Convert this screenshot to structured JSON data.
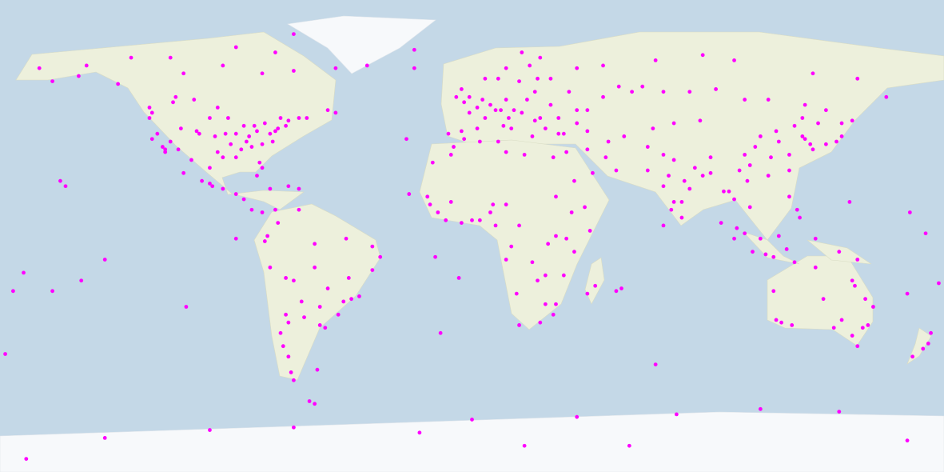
{
  "map": {
    "projection": "equirectangular",
    "lon_range": [
      -180,
      180
    ],
    "lat_range": [
      90,
      -90
    ],
    "point_color": "#ff00ff",
    "points": [
      [
        -122,
        37
      ],
      [
        -118,
        34
      ],
      [
        -117,
        33
      ],
      [
        -112,
        33
      ],
      [
        -105,
        40
      ],
      [
        -97,
        32
      ],
      [
        -95,
        30
      ],
      [
        -90,
        30
      ],
      [
        -84,
        34
      ],
      [
        -81,
        28
      ],
      [
        -80,
        26
      ],
      [
        -77,
        39
      ],
      [
        -74,
        41
      ],
      [
        -71,
        42
      ],
      [
        -75,
        40
      ],
      [
        -87,
        42
      ],
      [
        -83,
        42
      ],
      [
        -93,
        45
      ],
      [
        -90,
        39
      ],
      [
        -94,
        39
      ],
      [
        -86,
        36
      ],
      [
        -80,
        35
      ],
      [
        -82,
        40
      ],
      [
        -79,
        43
      ],
      [
        -73,
        45
      ],
      [
        -97,
        49
      ],
      [
        -104,
        39
      ],
      [
        -111,
        41
      ],
      [
        -115,
        36
      ],
      [
        -120,
        39
      ],
      [
        -123,
        45
      ],
      [
        -122,
        47
      ],
      [
        -114,
        51
      ],
      [
        -113,
        53
      ],
      [
        -106,
        52
      ],
      [
        -100,
        45
      ],
      [
        -98,
        38
      ],
      [
        -92,
        35
      ],
      [
        -88,
        33
      ],
      [
        -85,
        38
      ],
      [
        -76,
        36
      ],
      [
        -70,
        44
      ],
      [
        -66,
        45
      ],
      [
        -63,
        45
      ],
      [
        -123,
        49
      ],
      [
        -135,
        58
      ],
      [
        -150,
        61
      ],
      [
        -147,
        65
      ],
      [
        -165,
        64
      ],
      [
        -160,
        59
      ],
      [
        -100,
        20
      ],
      [
        -99,
        19
      ],
      [
        -103,
        21
      ],
      [
        -110,
        24
      ],
      [
        -90,
        16
      ],
      [
        -87,
        14
      ],
      [
        -84,
        10
      ],
      [
        -80,
        9
      ],
      [
        -77,
        18
      ],
      [
        -70,
        19
      ],
      [
        -66,
        18
      ],
      [
        -82,
        23
      ],
      [
        -95,
        18
      ],
      [
        -107,
        29
      ],
      [
        -117,
        32
      ],
      [
        -100,
        26
      ],
      [
        -110,
        62
      ],
      [
        -95,
        65
      ],
      [
        -80,
        62
      ],
      [
        -68,
        63
      ],
      [
        -75,
        70
      ],
      [
        -90,
        72
      ],
      [
        -115,
        68
      ],
      [
        -130,
        68
      ],
      [
        -55,
        48
      ],
      [
        -52,
        47
      ],
      [
        -52,
        64
      ],
      [
        -40,
        65
      ],
      [
        -22,
        71
      ],
      [
        -68,
        77
      ],
      [
        -74,
        5
      ],
      [
        -66,
        10
      ],
      [
        -75,
        10
      ],
      [
        -78,
        0
      ],
      [
        -79,
        -2
      ],
      [
        -77,
        -12
      ],
      [
        -71,
        -16
      ],
      [
        -68,
        -17
      ],
      [
        -60,
        -3
      ],
      [
        -48,
        -1
      ],
      [
        -38,
        -4
      ],
      [
        -35,
        -8
      ],
      [
        -38,
        -13
      ],
      [
        -43,
        -23
      ],
      [
        -46,
        -24
      ],
      [
        -49,
        -25
      ],
      [
        -51,
        -30
      ],
      [
        -56,
        -35
      ],
      [
        -58,
        -34
      ],
      [
        -64,
        -31
      ],
      [
        -65,
        -25
      ],
      [
        -70,
        -33
      ],
      [
        -71,
        -30
      ],
      [
        -73,
        -37
      ],
      [
        -72,
        -42
      ],
      [
        -70,
        -46
      ],
      [
        -69,
        -52
      ],
      [
        -68,
        -55
      ],
      [
        -60,
        -12
      ],
      [
        -55,
        -20
      ],
      [
        -47,
        -16
      ],
      [
        -58,
        -27
      ],
      [
        -59,
        -51
      ],
      [
        -9,
        39
      ],
      [
        -4,
        40
      ],
      [
        -3,
        37
      ],
      [
        2,
        41
      ],
      [
        2,
        49
      ],
      [
        5,
        45
      ],
      [
        -1,
        47
      ],
      [
        -3,
        51
      ],
      [
        -1,
        53
      ],
      [
        -4,
        56
      ],
      [
        -6,
        53
      ],
      [
        4,
        52
      ],
      [
        7,
        50
      ],
      [
        9,
        48
      ],
      [
        13,
        52
      ],
      [
        11,
        48
      ],
      [
        16,
        48
      ],
      [
        19,
        47
      ],
      [
        21,
        52
      ],
      [
        24,
        55
      ],
      [
        12,
        42
      ],
      [
        15,
        41
      ],
      [
        14,
        45
      ],
      [
        23,
        38
      ],
      [
        28,
        41
      ],
      [
        24,
        44
      ],
      [
        26,
        45
      ],
      [
        30,
        50
      ],
      [
        37,
        55
      ],
      [
        30,
        60
      ],
      [
        25,
        60
      ],
      [
        18,
        59
      ],
      [
        10,
        60
      ],
      [
        5,
        60
      ],
      [
        13,
        64
      ],
      [
        22,
        65
      ],
      [
        26,
        68
      ],
      [
        19,
        70
      ],
      [
        40,
        48
      ],
      [
        44,
        48
      ],
      [
        33,
        45
      ],
      [
        40,
        43
      ],
      [
        -22,
        64
      ],
      [
        50,
        53
      ],
      [
        56,
        57
      ],
      [
        61,
        55
      ],
      [
        65,
        57
      ],
      [
        73,
        55
      ],
      [
        83,
        55
      ],
      [
        93,
        56
      ],
      [
        104,
        52
      ],
      [
        113,
        52
      ],
      [
        127,
        50
      ],
      [
        135,
        48
      ],
      [
        132,
        43
      ],
      [
        158,
        53
      ],
      [
        147,
        60
      ],
      [
        130,
        62
      ],
      [
        100,
        67
      ],
      [
        88,
        69
      ],
      [
        70,
        67
      ],
      [
        50,
        65
      ],
      [
        40,
        64
      ],
      [
        69,
        41
      ],
      [
        77,
        43
      ],
      [
        58,
        38
      ],
      [
        52,
        36
      ],
      [
        51,
        30
      ],
      [
        44,
        33
      ],
      [
        46,
        24
      ],
      [
        39,
        21
      ],
      [
        55,
        25
      ],
      [
        36,
        32
      ],
      [
        35,
        39
      ],
      [
        33,
        39
      ],
      [
        44,
        40
      ],
      [
        67,
        34
      ],
      [
        73,
        31
      ],
      [
        67,
        25
      ],
      [
        77,
        29
      ],
      [
        73,
        19
      ],
      [
        80,
        13
      ],
      [
        77,
        13
      ],
      [
        88,
        23
      ],
      [
        85,
        26
      ],
      [
        81,
        21
      ],
      [
        76,
        10
      ],
      [
        80,
        7
      ],
      [
        91,
        24
      ],
      [
        83,
        18
      ],
      [
        75,
        23
      ],
      [
        116,
        40
      ],
      [
        121,
        31
      ],
      [
        113,
        23
      ],
      [
        114,
        30
      ],
      [
        104,
        31
      ],
      [
        108,
        34
      ],
      [
        117,
        36
      ],
      [
        123,
        42
      ],
      [
        126,
        45
      ],
      [
        106,
        27
      ],
      [
        102,
        25
      ],
      [
        91,
        30
      ],
      [
        87,
        44
      ],
      [
        110,
        38
      ],
      [
        127,
        37
      ],
      [
        129,
        35
      ],
      [
        126,
        38
      ],
      [
        121,
        25
      ],
      [
        139,
        36
      ],
      [
        135,
        35
      ],
      [
        130,
        33
      ],
      [
        141,
        38
      ],
      [
        141,
        43
      ],
      [
        145,
        44
      ],
      [
        100,
        14
      ],
      [
        106,
        11
      ],
      [
        105,
        21
      ],
      [
        101,
        3
      ],
      [
        104,
        1
      ],
      [
        107,
        -6
      ],
      [
        112,
        -7
      ],
      [
        115,
        -8
      ],
      [
        121,
        15
      ],
      [
        124,
        10
      ],
      [
        125,
        7
      ],
      [
        98,
        17
      ],
      [
        96,
        17
      ],
      [
        110,
        -1
      ],
      [
        117,
        0
      ],
      [
        120,
        -5
      ],
      [
        131,
        -1
      ],
      [
        140,
        -6
      ],
      [
        147,
        -9
      ],
      [
        123,
        -10
      ],
      [
        95,
        5
      ],
      [
        100,
        -1
      ],
      [
        -17,
        15
      ],
      [
        -8,
        13
      ],
      [
        -16,
        12
      ],
      [
        -13,
        9
      ],
      [
        -4,
        5
      ],
      [
        0,
        6
      ],
      [
        3,
        6
      ],
      [
        7,
        9
      ],
      [
        8,
        12
      ],
      [
        13,
        12
      ],
      [
        15,
        -4
      ],
      [
        18,
        4
      ],
      [
        23,
        -10
      ],
      [
        28,
        -15
      ],
      [
        32,
        -26
      ],
      [
        28,
        -26
      ],
      [
        18,
        -34
      ],
      [
        26,
        -33
      ],
      [
        31,
        -30
      ],
      [
        25,
        -17
      ],
      [
        36,
        -1
      ],
      [
        39,
        -6
      ],
      [
        32,
        0
      ],
      [
        38,
        9
      ],
      [
        45,
        2
      ],
      [
        32,
        15
      ],
      [
        31,
        30
      ],
      [
        10,
        36
      ],
      [
        3,
        36
      ],
      [
        -7,
        34
      ],
      [
        -8,
        31
      ],
      [
        13,
        32
      ],
      [
        20,
        31
      ],
      [
        35,
        -15
      ],
      [
        47,
        -19
      ],
      [
        44,
        -22
      ],
      [
        17,
        -22
      ],
      [
        13,
        -9
      ],
      [
        -10,
        6
      ],
      [
        9,
        4
      ],
      [
        29,
        -3
      ],
      [
        43,
        11
      ],
      [
        -15,
        28
      ],
      [
        151,
        -34
      ],
      [
        145,
        -38
      ],
      [
        153,
        -27
      ],
      [
        138,
        -35
      ],
      [
        116,
        -32
      ],
      [
        115,
        -21
      ],
      [
        131,
        -12
      ],
      [
        146,
        -19
      ],
      [
        149,
        -35
      ],
      [
        147,
        -42
      ],
      [
        134,
        -24
      ],
      [
        118,
        -33
      ],
      [
        122,
        -34
      ],
      [
        145,
        -17
      ],
      [
        150,
        -24
      ],
      [
        141,
        -32
      ],
      [
        175,
        -37
      ],
      [
        174,
        -41
      ],
      [
        172,
        -43
      ],
      [
        168,
        -46
      ],
      [
        178,
        -18
      ],
      [
        166,
        -22
      ],
      [
        -157,
        21
      ],
      [
        -155,
        19
      ],
      [
        -149,
        -17
      ],
      [
        -171,
        -14
      ],
      [
        -175,
        -21
      ],
      [
        -140,
        -9
      ],
      [
        -160,
        -21
      ],
      [
        -109,
        -27
      ],
      [
        -90,
        -1
      ],
      [
        -25,
        37
      ],
      [
        -24,
        16
      ],
      [
        -14,
        -8
      ],
      [
        -5,
        -16
      ],
      [
        -12,
        -37
      ],
      [
        73,
        4
      ],
      [
        55,
        -21
      ],
      [
        57,
        -20
      ],
      [
        70,
        -49
      ],
      [
        144,
        13
      ],
      [
        167,
        9
      ],
      [
        173,
        1
      ],
      [
        -178,
        -45
      ],
      [
        -68,
        -73
      ],
      [
        -62,
        -63
      ],
      [
        -60,
        -64
      ],
      [
        -20,
        -75
      ],
      [
        0,
        -70
      ],
      [
        40,
        -69
      ],
      [
        78,
        -68
      ],
      [
        110,
        -66
      ],
      [
        140,
        -67
      ],
      [
        166,
        -78
      ],
      [
        -140,
        -77
      ],
      [
        -100,
        -74
      ],
      [
        -170,
        -85
      ],
      [
        60,
        -80
      ],
      [
        20,
        -80
      ]
    ]
  }
}
